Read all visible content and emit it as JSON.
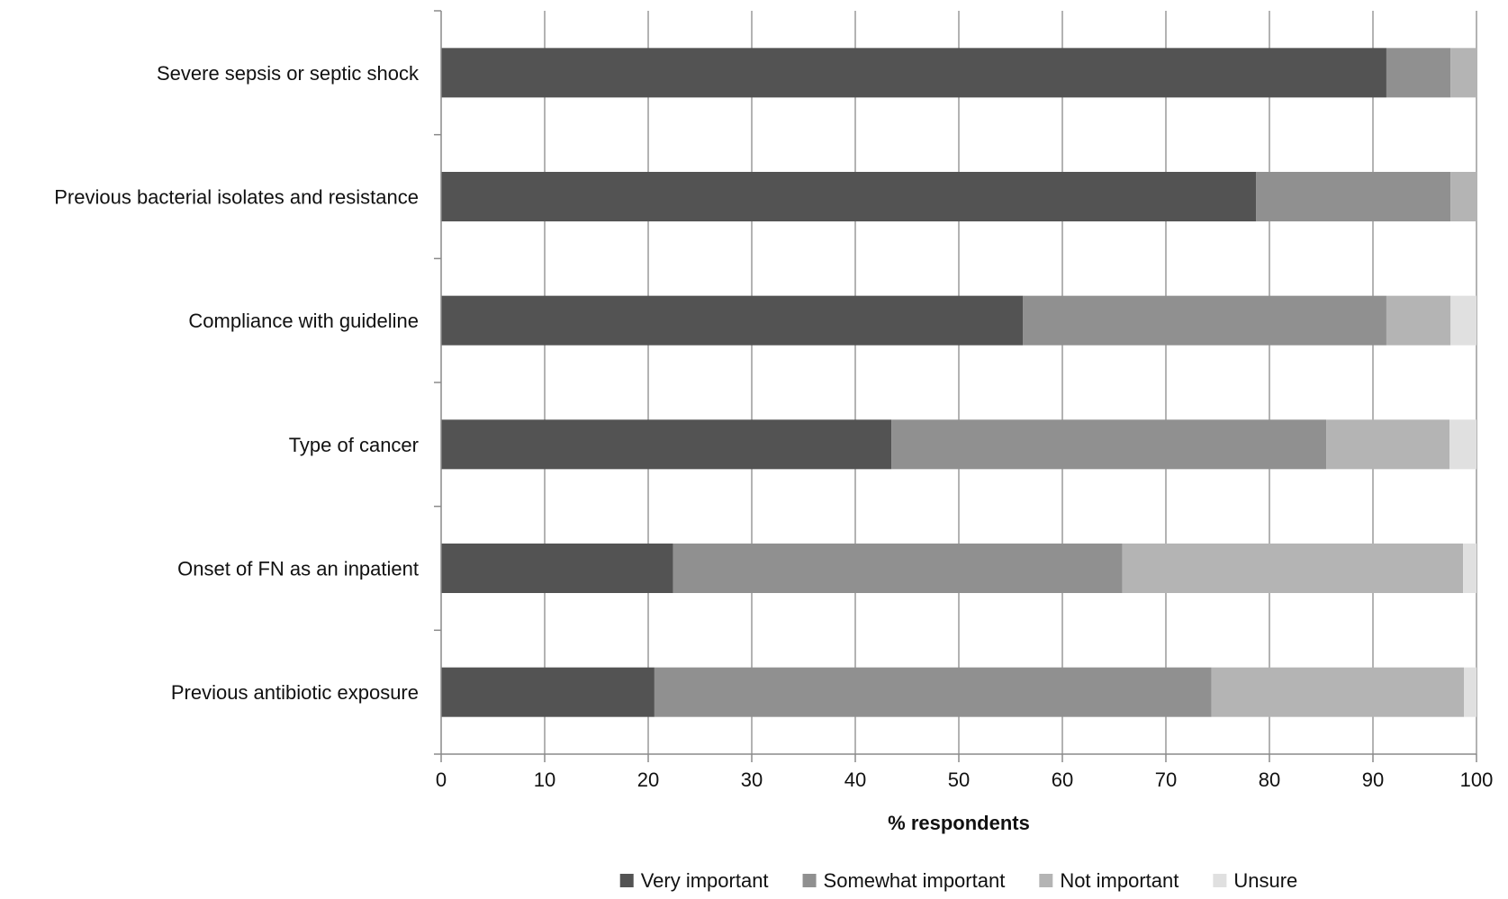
{
  "chart_data": {
    "type": "bar",
    "orientation": "horizontal",
    "stacked": true,
    "categories": [
      "Severe sepsis or septic shock",
      "Previous bacterial isolates and resistance",
      "Compliance with guideline",
      "Type of cancer",
      "Onset of FN as an inpatient",
      "Previous antibiotic exposure"
    ],
    "series": [
      {
        "name": "Very important",
        "color": "#535353",
        "values": [
          91.3,
          78.7,
          56.2,
          43.5,
          22.4,
          20.6
        ]
      },
      {
        "name": "Somewhat important",
        "color": "#909090",
        "values": [
          6.2,
          18.8,
          35.1,
          42.0,
          43.4,
          53.8
        ]
      },
      {
        "name": "Not important",
        "color": "#b4b4b4",
        "values": [
          2.5,
          2.5,
          6.2,
          11.9,
          32.9,
          24.4
        ]
      },
      {
        "name": "Unsure",
        "color": "#e0e0e0",
        "values": [
          0.0,
          0.0,
          2.5,
          2.6,
          1.3,
          1.2
        ]
      }
    ],
    "xlabel": "% respondents",
    "xlim": [
      0,
      100
    ],
    "xticks": [
      "0",
      "10",
      "20",
      "30",
      "40",
      "50",
      "60",
      "70",
      "80",
      "90",
      "100"
    ],
    "grid": "vertical",
    "legend_position": "bottom"
  }
}
